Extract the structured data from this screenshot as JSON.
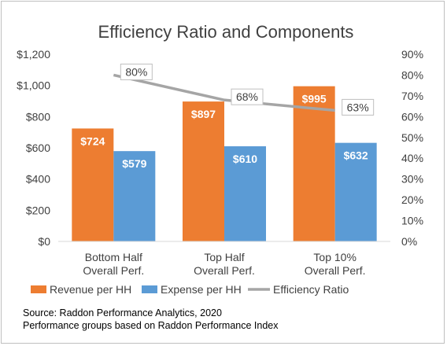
{
  "chart_data": {
    "type": "bar",
    "title": "Efficiency Ratio and Components",
    "categories": [
      [
        "Bottom Half",
        "Overall Perf."
      ],
      [
        "Top Half",
        "Overall Perf."
      ],
      [
        "Top 10%",
        "Overall Perf."
      ]
    ],
    "series": [
      {
        "name": "Revenue per HH",
        "type": "bar",
        "axis": "left",
        "color": "#ED7D31",
        "values": [
          724,
          897,
          995
        ],
        "labels": [
          "$724",
          "$897",
          "$995"
        ]
      },
      {
        "name": "Expense per HH",
        "type": "bar",
        "axis": "left",
        "color": "#5B9BD5",
        "values": [
          579,
          610,
          632
        ],
        "labels": [
          "$579",
          "$610",
          "$632"
        ]
      },
      {
        "name": "Efficiency Ratio",
        "type": "line",
        "axis": "right",
        "color": "#A5A5A5",
        "values": [
          80,
          68,
          63
        ],
        "labels": [
          "80%",
          "68%",
          "63%"
        ]
      }
    ],
    "y_left": {
      "min": 0,
      "max": 1200,
      "step": 200,
      "ticks": [
        "$0",
        "$200",
        "$400",
        "$600",
        "$800",
        "$1,000",
        "$1,200"
      ]
    },
    "y_right": {
      "min": 0,
      "max": 90,
      "step": 10,
      "ticks": [
        "0%",
        "10%",
        "20%",
        "30%",
        "40%",
        "50%",
        "60%",
        "70%",
        "80%",
        "90%"
      ]
    },
    "grid": false,
    "legend_position": "bottom"
  },
  "footnotes": [
    "Source: Raddon Performance Analytics, 2020",
    "Performance groups based on Raddon Performance Index"
  ]
}
